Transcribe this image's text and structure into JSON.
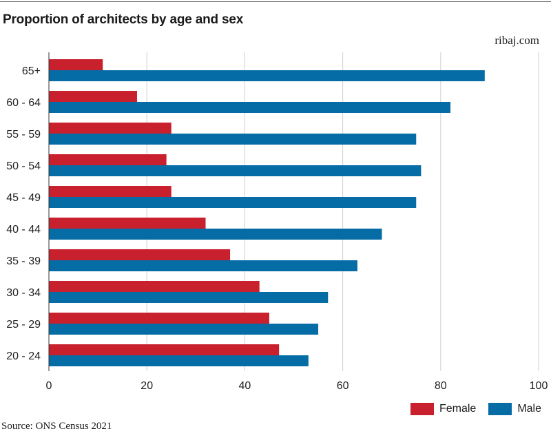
{
  "brand": "ribaj.com",
  "source": "Source: ONS Census 2021",
  "colors": {
    "female": "#c8202d",
    "male": "#066ca6",
    "grid": "#cfcfcf",
    "axis": "#333333"
  },
  "chart_data": {
    "type": "bar",
    "orientation": "horizontal",
    "title": "Proportion of architects by age and sex",
    "xlabel": "",
    "ylabel": "",
    "xlim": [
      0,
      100
    ],
    "x_ticks": [
      0,
      20,
      40,
      60,
      80,
      100
    ],
    "grid": true,
    "legend_position": "bottom-right",
    "categories": [
      "65+",
      "60 - 64",
      "55 - 59",
      "50 - 54",
      "45 - 49",
      "40 - 44",
      "35 - 39",
      "30 - 34",
      "25 - 29",
      "20 - 24"
    ],
    "series": [
      {
        "name": "Female",
        "color": "#c8202d",
        "values": [
          11,
          18,
          25,
          24,
          25,
          32,
          37,
          43,
          45,
          47
        ]
      },
      {
        "name": "Male",
        "color": "#066ca6",
        "values": [
          89,
          82,
          75,
          76,
          75,
          68,
          63,
          57,
          55,
          53
        ]
      }
    ]
  }
}
